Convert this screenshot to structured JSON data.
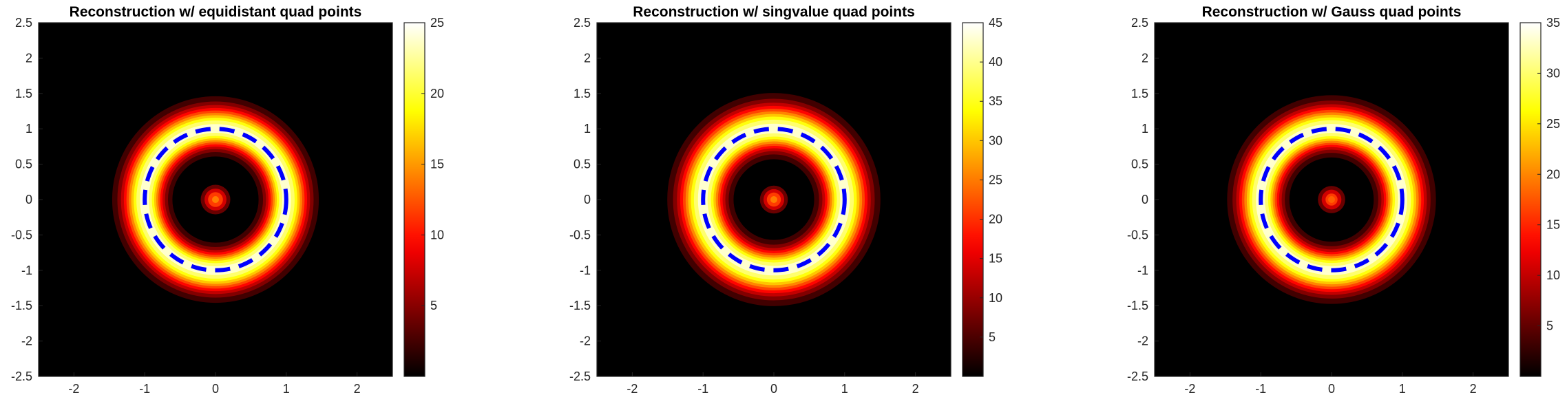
{
  "chart_data": [
    {
      "type": "heatmap",
      "title": "Reconstruction w/ equidistant quad points",
      "xlim": [
        -2.5,
        2.5
      ],
      "ylim": [
        -2.5,
        2.5
      ],
      "xticks": [
        -2,
        -1,
        0,
        1,
        2
      ],
      "xtick_labels": [
        "-2",
        "-1",
        "0",
        "1",
        "2"
      ],
      "yticks": [
        2.5,
        2,
        1.5,
        1,
        0.5,
        0,
        -0.5,
        -1,
        -1.5,
        -2,
        -2.5
      ],
      "ytick_labels": [
        "2.5",
        "2",
        "1.5",
        "1",
        "0.5",
        "0",
        "-0.5",
        "-1",
        "-1.5",
        "-2",
        "-2.5"
      ],
      "colormap": "hot",
      "clim": [
        0,
        25
      ],
      "colorbar_ticks": [
        5,
        10,
        15,
        20,
        25
      ],
      "colorbar_tick_labels": [
        "5",
        "10",
        "15",
        "20",
        "25"
      ],
      "field": {
        "ring_radius": 1.0,
        "ring_peak_value": 25,
        "ring_halfwidth": 0.3,
        "center_peak_value": 14,
        "center_halfwidth": 0.15
      },
      "overlay": {
        "shape": "circle",
        "center": [
          0,
          0
        ],
        "radius": 1.0,
        "style": "dashed",
        "color": "#0000ff"
      }
    },
    {
      "type": "heatmap",
      "title": "Reconstruction w/ singvalue quad points",
      "xlim": [
        -2.5,
        2.5
      ],
      "ylim": [
        -2.5,
        2.5
      ],
      "xticks": [
        -2,
        -1,
        0,
        1,
        2
      ],
      "xtick_labels": [
        "-2",
        "-1",
        "0",
        "1",
        "2"
      ],
      "yticks": [
        2.5,
        2,
        1.5,
        1,
        0.5,
        0,
        -0.5,
        -1,
        -1.5,
        -2,
        -2.5
      ],
      "ytick_labels": [
        "2.5",
        "2",
        "1.5",
        "1",
        "0.5",
        "0",
        "-0.5",
        "-1",
        "-1.5",
        "-2",
        "-2.5"
      ],
      "colormap": "hot",
      "clim": [
        0,
        45
      ],
      "colorbar_ticks": [
        5,
        10,
        15,
        20,
        25,
        30,
        35,
        40,
        45
      ],
      "colorbar_tick_labels": [
        "5",
        "10",
        "15",
        "20",
        "25",
        "30",
        "35",
        "40",
        "45"
      ],
      "field": {
        "ring_radius": 1.0,
        "ring_peak_value": 45,
        "ring_halfwidth": 0.33,
        "center_peak_value": 25,
        "center_halfwidth": 0.14
      },
      "overlay": {
        "shape": "circle",
        "center": [
          0,
          0
        ],
        "radius": 1.0,
        "style": "dashed",
        "color": "#0000ff"
      }
    },
    {
      "type": "heatmap",
      "title": "Reconstruction w/ Gauss quad points",
      "xlim": [
        -2.5,
        2.5
      ],
      "ylim": [
        -2.5,
        2.5
      ],
      "xticks": [
        -2,
        -1,
        0,
        1,
        2
      ],
      "xtick_labels": [
        "-2",
        "-1",
        "0",
        "1",
        "2"
      ],
      "yticks": [
        2.5,
        2,
        1.5,
        1,
        0.5,
        0,
        -0.5,
        -1,
        -1.5,
        -2,
        -2.5
      ],
      "ytick_labels": [
        "2.5",
        "2",
        "1.5",
        "1",
        "0.5",
        "0",
        "-0.5",
        "-1",
        "-1.5",
        "-2",
        "-2.5"
      ],
      "colormap": "hot",
      "clim": [
        0,
        35
      ],
      "colorbar_ticks": [
        5,
        10,
        15,
        20,
        25,
        30,
        35
      ],
      "colorbar_tick_labels": [
        "5",
        "10",
        "15",
        "20",
        "25",
        "30",
        "35"
      ],
      "field": {
        "ring_radius": 1.0,
        "ring_peak_value": 35,
        "ring_halfwidth": 0.31,
        "center_peak_value": 18,
        "center_halfwidth": 0.14
      },
      "overlay": {
        "shape": "circle",
        "center": [
          0,
          0
        ],
        "radius": 1.0,
        "style": "dashed",
        "color": "#0000ff"
      }
    }
  ]
}
